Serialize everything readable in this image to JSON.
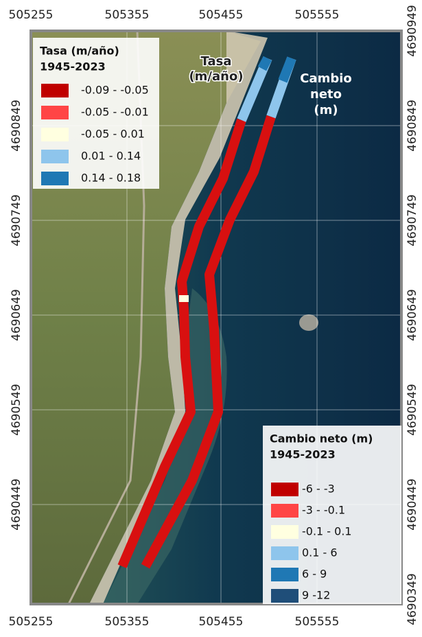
{
  "x_labels": [
    505255,
    505355,
    505455,
    505555
  ],
  "y_labels": [
    4690949,
    4690849,
    4690749,
    4690649,
    4690549,
    4690449,
    4690349
  ],
  "map_labels": {
    "tasa": [
      "Tasa",
      "(m/año)"
    ],
    "cambio": [
      "Cambio",
      "neto",
      "(m)"
    ]
  },
  "legend_tasa": {
    "title": "Tasa (m/año)",
    "period": "1945-2023",
    "items": [
      {
        "label": "-0.09 - -0.05",
        "color": "#c00000"
      },
      {
        "label": "-0.05 - -0.01",
        "color": "#ff4545"
      },
      {
        "label": "-0.05 - 0.01",
        "color": "#ffffe0"
      },
      {
        "label": "0.01 - 0.14",
        "color": "#8ec5ec"
      },
      {
        "label": "0.14 - 0.18",
        "color": "#1f78b4"
      }
    ]
  },
  "legend_cambio": {
    "title": "Cambio neto (m)",
    "period": "1945-2023",
    "items": [
      {
        "label": "-6 - -3",
        "color": "#c00000"
      },
      {
        "label": "-3 - -0.1",
        "color": "#ff4545"
      },
      {
        "label": "-0.1 - 0.1",
        "color": "#ffffe0"
      },
      {
        "label": "0.1 - 6",
        "color": "#8ec5ec"
      },
      {
        "label": "6 - 9",
        "color": "#1f78b4"
      },
      {
        "label": "9 -12",
        "color": "#1f4e79"
      }
    ]
  }
}
